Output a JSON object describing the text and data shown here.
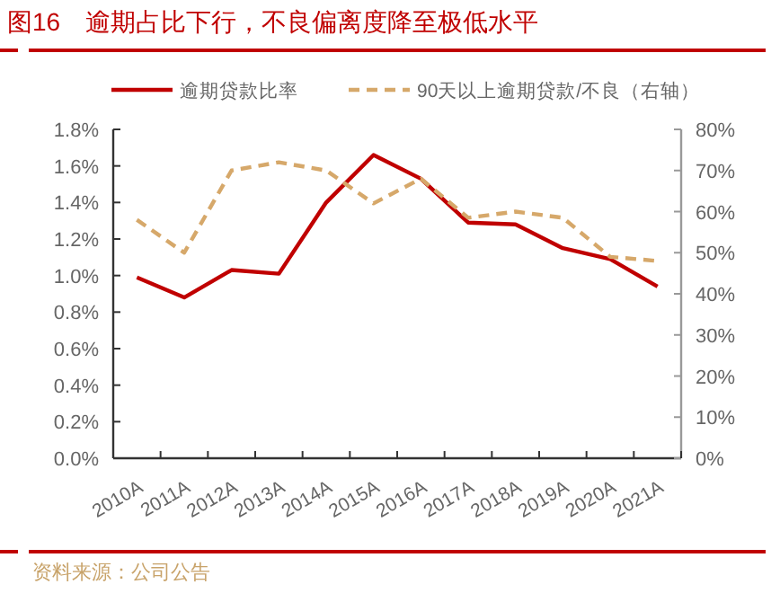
{
  "chart_data": {
    "type": "line",
    "title": "图16　逾期占比下行，不良偏离度降至极低水平",
    "annotations": [
      "资料来源：公司公告"
    ],
    "categories": [
      "2010A",
      "2011A",
      "2012A",
      "2013A",
      "2014A",
      "2015A",
      "2016A",
      "2017A",
      "2018A",
      "2019A",
      "2020A",
      "2021A"
    ],
    "series": [
      {
        "name": "逾期贷款比率",
        "color": "#c00000",
        "line_style": "solid",
        "values": [
          0.99,
          0.88,
          1.03,
          1.01,
          1.4,
          1.66,
          1.53,
          1.29,
          1.28,
          1.15,
          1.09,
          0.94
        ]
      },
      {
        "name": "90天以上逾期贷款/不良（右轴）",
        "color": "#d6a86a",
        "line_style": "dashed",
        "axis": "y2",
        "values": [
          58,
          50,
          70,
          72,
          70,
          62,
          68,
          58.5,
          60,
          58.5,
          49,
          48
        ]
      }
    ],
    "ylim": [
      0,
      1.8
    ],
    "yticks": [
      {
        "value": 0,
        "label": "0.0%"
      },
      {
        "value": 0.2,
        "label": "0.2%"
      },
      {
        "value": 0.4,
        "label": "0.4%"
      },
      {
        "value": 0.6,
        "label": "0.6%"
      },
      {
        "value": 0.8,
        "label": "0.8%"
      },
      {
        "value": 1.0,
        "label": "1.0%"
      },
      {
        "value": 1.2,
        "label": "1.2%"
      },
      {
        "value": 1.4,
        "label": "1.4%"
      },
      {
        "value": 1.6,
        "label": "1.6%"
      },
      {
        "value": 1.8,
        "label": "1.8%"
      }
    ],
    "y2lim": [
      0,
      80
    ],
    "y2ticks": [
      {
        "value": 0,
        "label": "0%"
      },
      {
        "value": 10,
        "label": "10%"
      },
      {
        "value": 20,
        "label": "20%"
      },
      {
        "value": 30,
        "label": "30%"
      },
      {
        "value": 40,
        "label": "40%"
      },
      {
        "value": 50,
        "label": "50%"
      },
      {
        "value": 60,
        "label": "60%"
      },
      {
        "value": 70,
        "label": "70%"
      },
      {
        "value": 80,
        "label": "80%"
      }
    ],
    "legend": "top",
    "grid": false,
    "marker": "none"
  }
}
